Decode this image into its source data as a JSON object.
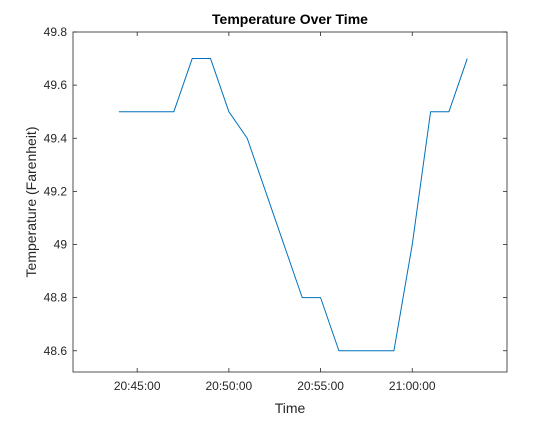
{
  "chart_data": {
    "type": "line",
    "title": "Temperature Over Time",
    "xlabel": "Time",
    "ylabel": "Temperature (Farenheit)",
    "x_tick_labels": [
      "20:45:00",
      "20:50:00",
      "20:55:00",
      "21:00:00"
    ],
    "x_ticks_minutes": [
      "20:45:00",
      "20:50:00",
      "20:55:00",
      "21:00:00"
    ],
    "xlim": [
      "20:41:30",
      "21:05:10"
    ],
    "ylim": [
      48.52,
      49.8
    ],
    "y_ticks": [
      48.6,
      48.8,
      49,
      49.2,
      49.4,
      49.6,
      49.8
    ],
    "y_tick_labels": [
      "48.6",
      "48.8",
      "49",
      "49.2",
      "49.4",
      "49.6",
      "49.8"
    ],
    "grid": false,
    "series": [
      {
        "color": "#0072BD",
        "points": [
          {
            "x": "20:44:00",
            "y": 49.5
          },
          {
            "x": "20:47:00",
            "y": 49.5
          },
          {
            "x": "20:48:00",
            "y": 49.7
          },
          {
            "x": "20:49:00",
            "y": 49.7
          },
          {
            "x": "20:50:00",
            "y": 49.5
          },
          {
            "x": "20:51:00",
            "y": 49.4
          },
          {
            "x": "20:54:00",
            "y": 48.8
          },
          {
            "x": "20:55:00",
            "y": 48.8
          },
          {
            "x": "20:56:00",
            "y": 48.6
          },
          {
            "x": "20:59:00",
            "y": 48.6
          },
          {
            "x": "21:00:00",
            "y": 49.0
          },
          {
            "x": "21:01:00",
            "y": 49.5
          },
          {
            "x": "21:02:00",
            "y": 49.5
          },
          {
            "x": "21:03:00",
            "y": 49.7
          }
        ]
      }
    ]
  }
}
